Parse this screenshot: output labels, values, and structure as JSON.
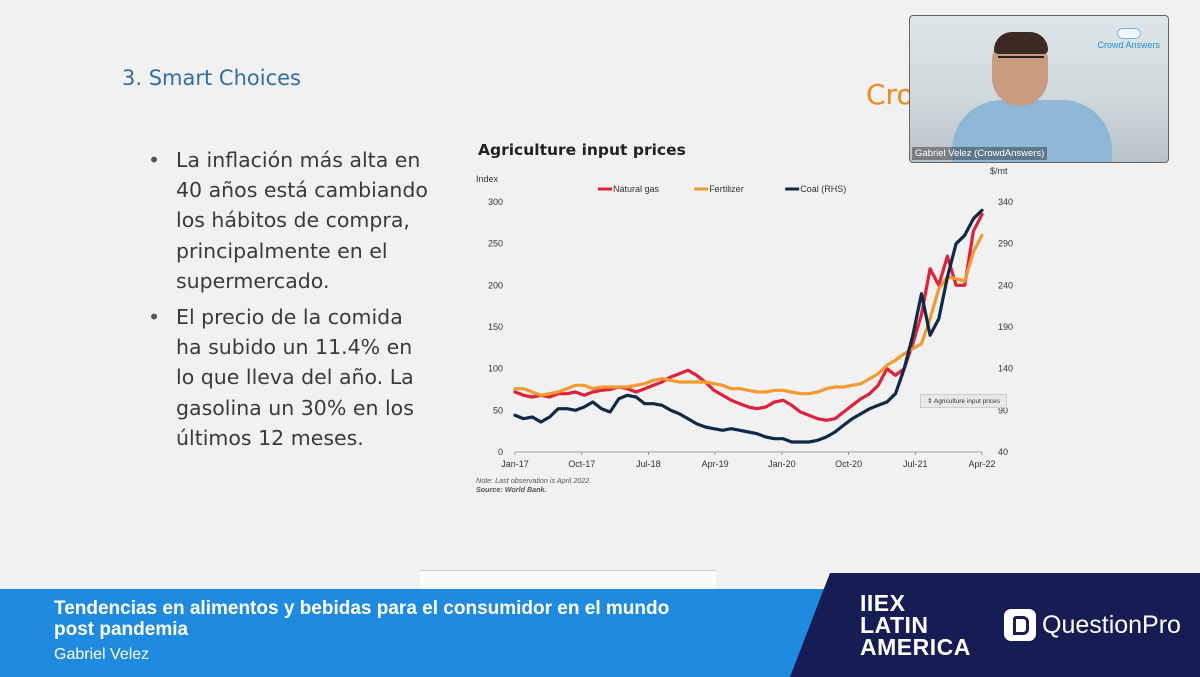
{
  "slide": {
    "title": "3. Smart Choices",
    "logo_partial": "Crowd",
    "bullets": [
      "La inflación más alta en 40 años está cambiando los hábitos de compra, principalmente en el supermercado.",
      "El precio de la comida ha subido un 11.4% en lo que lleva del año. La gasolina un 30% en los últimos 12 meses."
    ]
  },
  "chart_data": {
    "type": "line",
    "title": "Agriculture input prices",
    "ylabel": "Index",
    "y2label": "$/mt",
    "ylim": [
      0,
      300
    ],
    "y2lim": [
      40,
      340
    ],
    "yticks": [
      "0",
      "50",
      "100",
      "150",
      "200",
      "250",
      "300"
    ],
    "y2ticks": [
      "40",
      "90",
      "140",
      "190",
      "240",
      "290",
      "340"
    ],
    "xticks": [
      "Jan-17",
      "Oct-17",
      "Jul-18",
      "Apr-19",
      "Jan-20",
      "Oct-20",
      "Jul-21",
      "Apr-22"
    ],
    "legend_position": "top",
    "note": "Note: Last observation is April 2022.",
    "source": "Source: World Bank.",
    "tooltip": "Agriculture input prices",
    "series": [
      {
        "name": "Natural gas",
        "color": "#e3203a",
        "axis": "left",
        "values": [
          72,
          68,
          66,
          68,
          66,
          70,
          70,
          72,
          68,
          72,
          74,
          75,
          78,
          76,
          72,
          76,
          80,
          84,
          90,
          94,
          98,
          92,
          84,
          74,
          68,
          62,
          58,
          54,
          52,
          54,
          60,
          62,
          56,
          48,
          44,
          40,
          38,
          40,
          48,
          56,
          64,
          70,
          80,
          100,
          92,
          100,
          130,
          165,
          220,
          200,
          235,
          200,
          200,
          265,
          285
        ]
      },
      {
        "name": "Fertilizer",
        "color": "#f29a2e",
        "axis": "left",
        "values": [
          76,
          76,
          72,
          68,
          70,
          72,
          76,
          80,
          80,
          76,
          78,
          78,
          78,
          78,
          80,
          82,
          86,
          88,
          86,
          84,
          84,
          84,
          84,
          82,
          80,
          76,
          76,
          74,
          72,
          72,
          74,
          74,
          72,
          70,
          70,
          72,
          76,
          78,
          78,
          80,
          82,
          88,
          94,
          104,
          110,
          118,
          124,
          130,
          160,
          196,
          210,
          208,
          205,
          240,
          260
        ]
      },
      {
        "name": "Coal (RHS)",
        "color": "#0e2a4a",
        "axis": "right",
        "values": [
          84,
          80,
          82,
          76,
          82,
          92,
          92,
          90,
          94,
          100,
          92,
          88,
          104,
          108,
          106,
          98,
          98,
          96,
          90,
          86,
          80,
          74,
          70,
          68,
          66,
          68,
          66,
          64,
          62,
          58,
          56,
          56,
          52,
          52,
          52,
          54,
          58,
          64,
          72,
          80,
          86,
          92,
          96,
          100,
          110,
          140,
          180,
          230,
          180,
          200,
          250,
          290,
          300,
          320,
          330
        ]
      }
    ]
  },
  "webcam": {
    "name_label": "Gabriel Velez (CrowdAnswers)",
    "logo_text": "Crowd Answers"
  },
  "banner": {
    "title": "Tendencias en alimentos y bebidas para el consumidor en el mundo post pandemia",
    "speaker": "Gabriel Velez",
    "event_line1": "IIEX",
    "event_line2": "LATIN",
    "event_line3": "AMERICA",
    "sponsor": "QuestionPro"
  }
}
